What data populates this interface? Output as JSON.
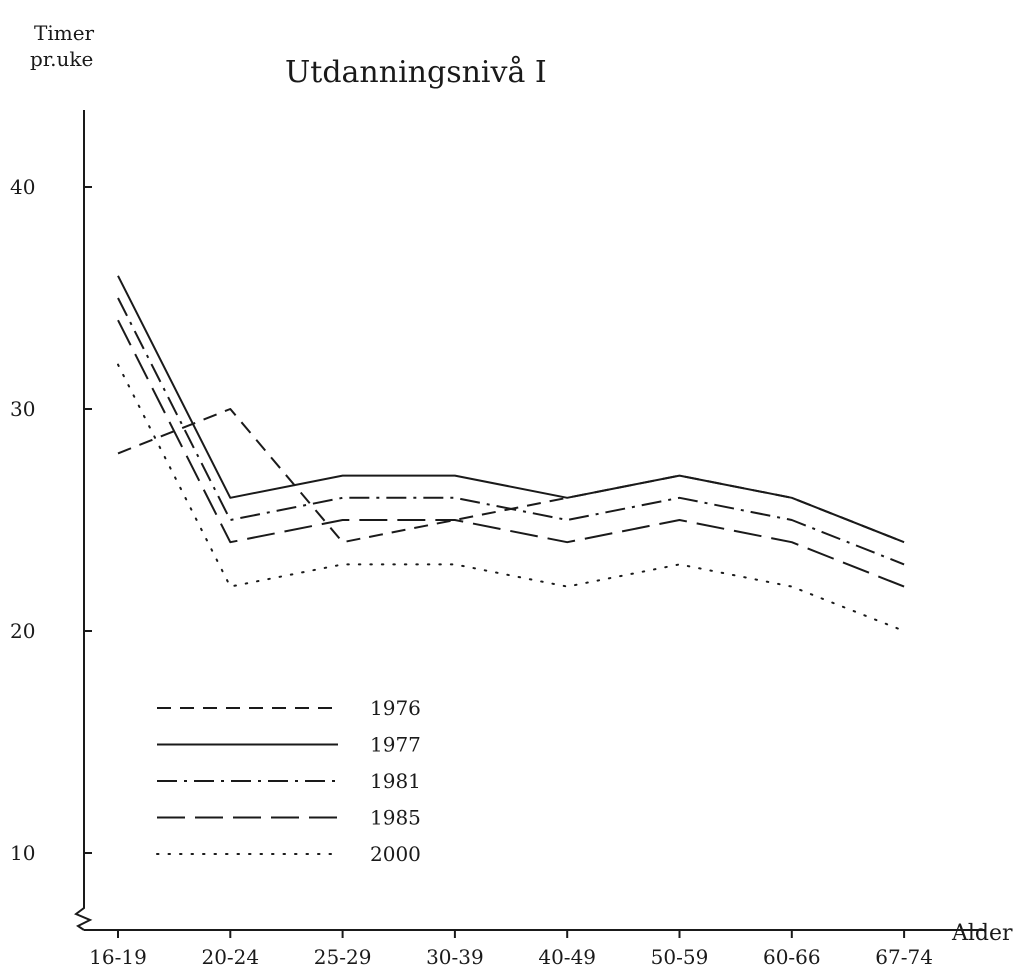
{
  "chart_data": {
    "type": "line",
    "title": "Utdanningsnivå I",
    "ylabel_line1": "Timer",
    "ylabel_line2": "pr.uke",
    "xlabel": "Alder",
    "categories": [
      "16-19",
      "20-24",
      "25-29",
      "30-39",
      "40-49",
      "50-59",
      "60-66",
      "67-74"
    ],
    "ylim": [
      7,
      44
    ],
    "yticks": [
      10,
      20,
      30,
      40
    ],
    "grid": false,
    "legend_position": "bottom-left",
    "axis_break": true,
    "series": [
      {
        "name": "1976",
        "style": "dashed",
        "values": [
          28,
          30,
          24,
          25,
          26,
          27,
          26,
          24
        ]
      },
      {
        "name": "1977",
        "style": "solid",
        "values": [
          36,
          26,
          27,
          27,
          26,
          27,
          26,
          24
        ]
      },
      {
        "name": "1981",
        "style": "dashdot",
        "values": [
          35,
          25,
          26,
          26,
          25,
          26,
          25,
          23
        ]
      },
      {
        "name": "1985",
        "style": "longdash",
        "values": [
          34,
          24,
          25,
          25,
          24,
          25,
          24,
          22
        ]
      },
      {
        "name": "2000",
        "style": "dotted",
        "values": [
          32,
          22,
          23,
          23,
          22,
          23,
          22,
          20
        ]
      }
    ],
    "colors": {
      "ink": "#1a1a1a",
      "background": "#ffffff"
    }
  }
}
